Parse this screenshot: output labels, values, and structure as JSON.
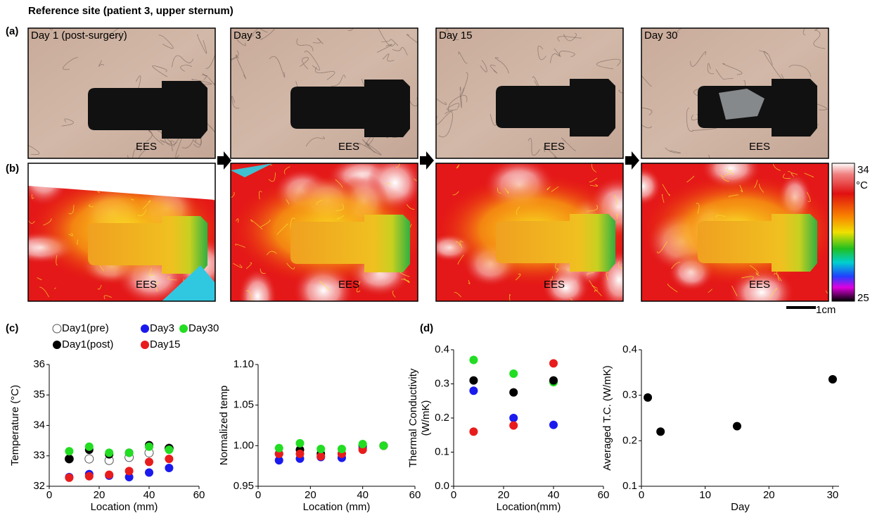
{
  "figure": {
    "title": "Reference site (patient 3, upper sternum)",
    "panels": {
      "a": "(a)",
      "b": "(b)",
      "c": "(c)",
      "d": "(d)"
    },
    "photos": [
      {
        "label": "Day 1 (post-surgery)",
        "device": "EES"
      },
      {
        "label": "Day 3",
        "device": "EES"
      },
      {
        "label": "Day 15",
        "device": "EES"
      },
      {
        "label": "Day 30",
        "device": "EES"
      }
    ],
    "thermal": [
      {
        "device": "EES"
      },
      {
        "device": "EES"
      },
      {
        "device": "EES"
      },
      {
        "device": "EES"
      }
    ],
    "colorbar": {
      "lim": [
        25,
        34
      ],
      "unit": "°C"
    },
    "scale_bar": "1cm"
  },
  "chart_data": [
    {
      "type": "scatter",
      "y_label": [
        "Temperature (°C)"
      ],
      "x_label": "Location (mm)",
      "x": [
        8,
        16,
        24,
        32,
        40,
        48
      ],
      "xlim": [
        0,
        60
      ],
      "xticks": [
        0,
        20,
        40,
        60
      ],
      "ylim": [
        32,
        36
      ],
      "yticks": [
        32,
        33,
        34,
        35,
        36
      ],
      "series": [
        {
          "name": "Day1(pre)",
          "color": "#000000",
          "marker": "open",
          "values": [
            32.9,
            32.9,
            32.85,
            32.95,
            33.1,
            33.25
          ]
        },
        {
          "name": "Day1(post)",
          "color": "#000000",
          "marker": "filled",
          "values": [
            32.9,
            33.2,
            33.05,
            33.1,
            33.35,
            33.25
          ]
        },
        {
          "name": "Day3",
          "color": "#1a1aee",
          "marker": "filled",
          "values": [
            32.3,
            32.4,
            32.35,
            32.3,
            32.45,
            32.6
          ]
        },
        {
          "name": "Day15",
          "color": "#e81c1c",
          "marker": "filled",
          "values": [
            32.28,
            32.33,
            32.38,
            32.5,
            32.8,
            32.9
          ]
        },
        {
          "name": "Day30",
          "color": "#22dd22",
          "marker": "filled",
          "values": [
            33.15,
            33.3,
            33.1,
            33.1,
            33.3,
            33.2
          ]
        }
      ]
    },
    {
      "type": "scatter",
      "y_label": [
        "Normalized temp"
      ],
      "x_label": "Location (mm)",
      "x": [
        8,
        16,
        24,
        32,
        40,
        48
      ],
      "xlim": [
        0,
        60
      ],
      "xticks": [
        0,
        20,
        40,
        60
      ],
      "ylim": [
        0.95,
        1.1
      ],
      "yticks": [
        0.95,
        {
          "value": 1,
          "label": "1.00"
        },
        1.05,
        {
          "value": 1.1,
          "label": "1.10"
        }
      ],
      "series": [
        {
          "color": "#000000",
          "marker": "filled",
          "values": [
            0.99,
            0.995,
            0.99,
            0.99,
            1.0,
            1.0
          ]
        },
        {
          "color": "#1a1aee",
          "marker": "filled",
          "values": [
            0.982,
            0.984,
            0.986,
            0.985,
            0.997,
            1.0
          ]
        },
        {
          "color": "#e81c1c",
          "marker": "filled",
          "values": [
            0.99,
            0.99,
            0.987,
            0.99,
            0.995,
            1.0
          ]
        },
        {
          "color": "#22dd22",
          "marker": "filled",
          "values": [
            0.997,
            1.003,
            0.996,
            0.996,
            1.002,
            1.0
          ]
        }
      ]
    },
    {
      "type": "scatter",
      "y_label": [
        "Thermal Conductivity",
        "(W/mK)"
      ],
      "x_label": "Location(mm)",
      "x": [
        8,
        24,
        40
      ],
      "xlim": [
        0,
        60
      ],
      "xticks": [
        0,
        20,
        40,
        60
      ],
      "ylim": [
        0,
        0.4
      ],
      "yticks": [
        {
          "value": 0,
          "label": "0.0"
        },
        0.1,
        0.2,
        0.3,
        0.4
      ],
      "series": [
        {
          "color": "#22dd22",
          "marker": "filled",
          "values": [
            0.37,
            0.33,
            0.305
          ]
        },
        {
          "color": "#000000",
          "marker": "filled",
          "values": [
            0.31,
            0.275,
            0.31
          ]
        },
        {
          "color": "#1a1aee",
          "marker": "filled",
          "values": [
            0.28,
            0.2,
            0.18
          ]
        },
        {
          "color": "#e81c1c",
          "marker": "filled",
          "values": [
            0.16,
            0.178,
            0.36
          ]
        }
      ]
    },
    {
      "type": "scatter",
      "y_label": [
        "Averaged T.C. (W/mK)"
      ],
      "x_label": "Day",
      "x": [
        1,
        3,
        15,
        30
      ],
      "xlim": [
        0,
        31
      ],
      "xticks": [
        0,
        10,
        20,
        30
      ],
      "ylim": [
        0.1,
        0.4
      ],
      "yticks": [
        0.1,
        0.2,
        0.3,
        0.4
      ],
      "series": [
        {
          "color": "#000000",
          "marker": "filled",
          "values": [
            0.295,
            0.22,
            0.232,
            0.335
          ]
        }
      ]
    }
  ]
}
